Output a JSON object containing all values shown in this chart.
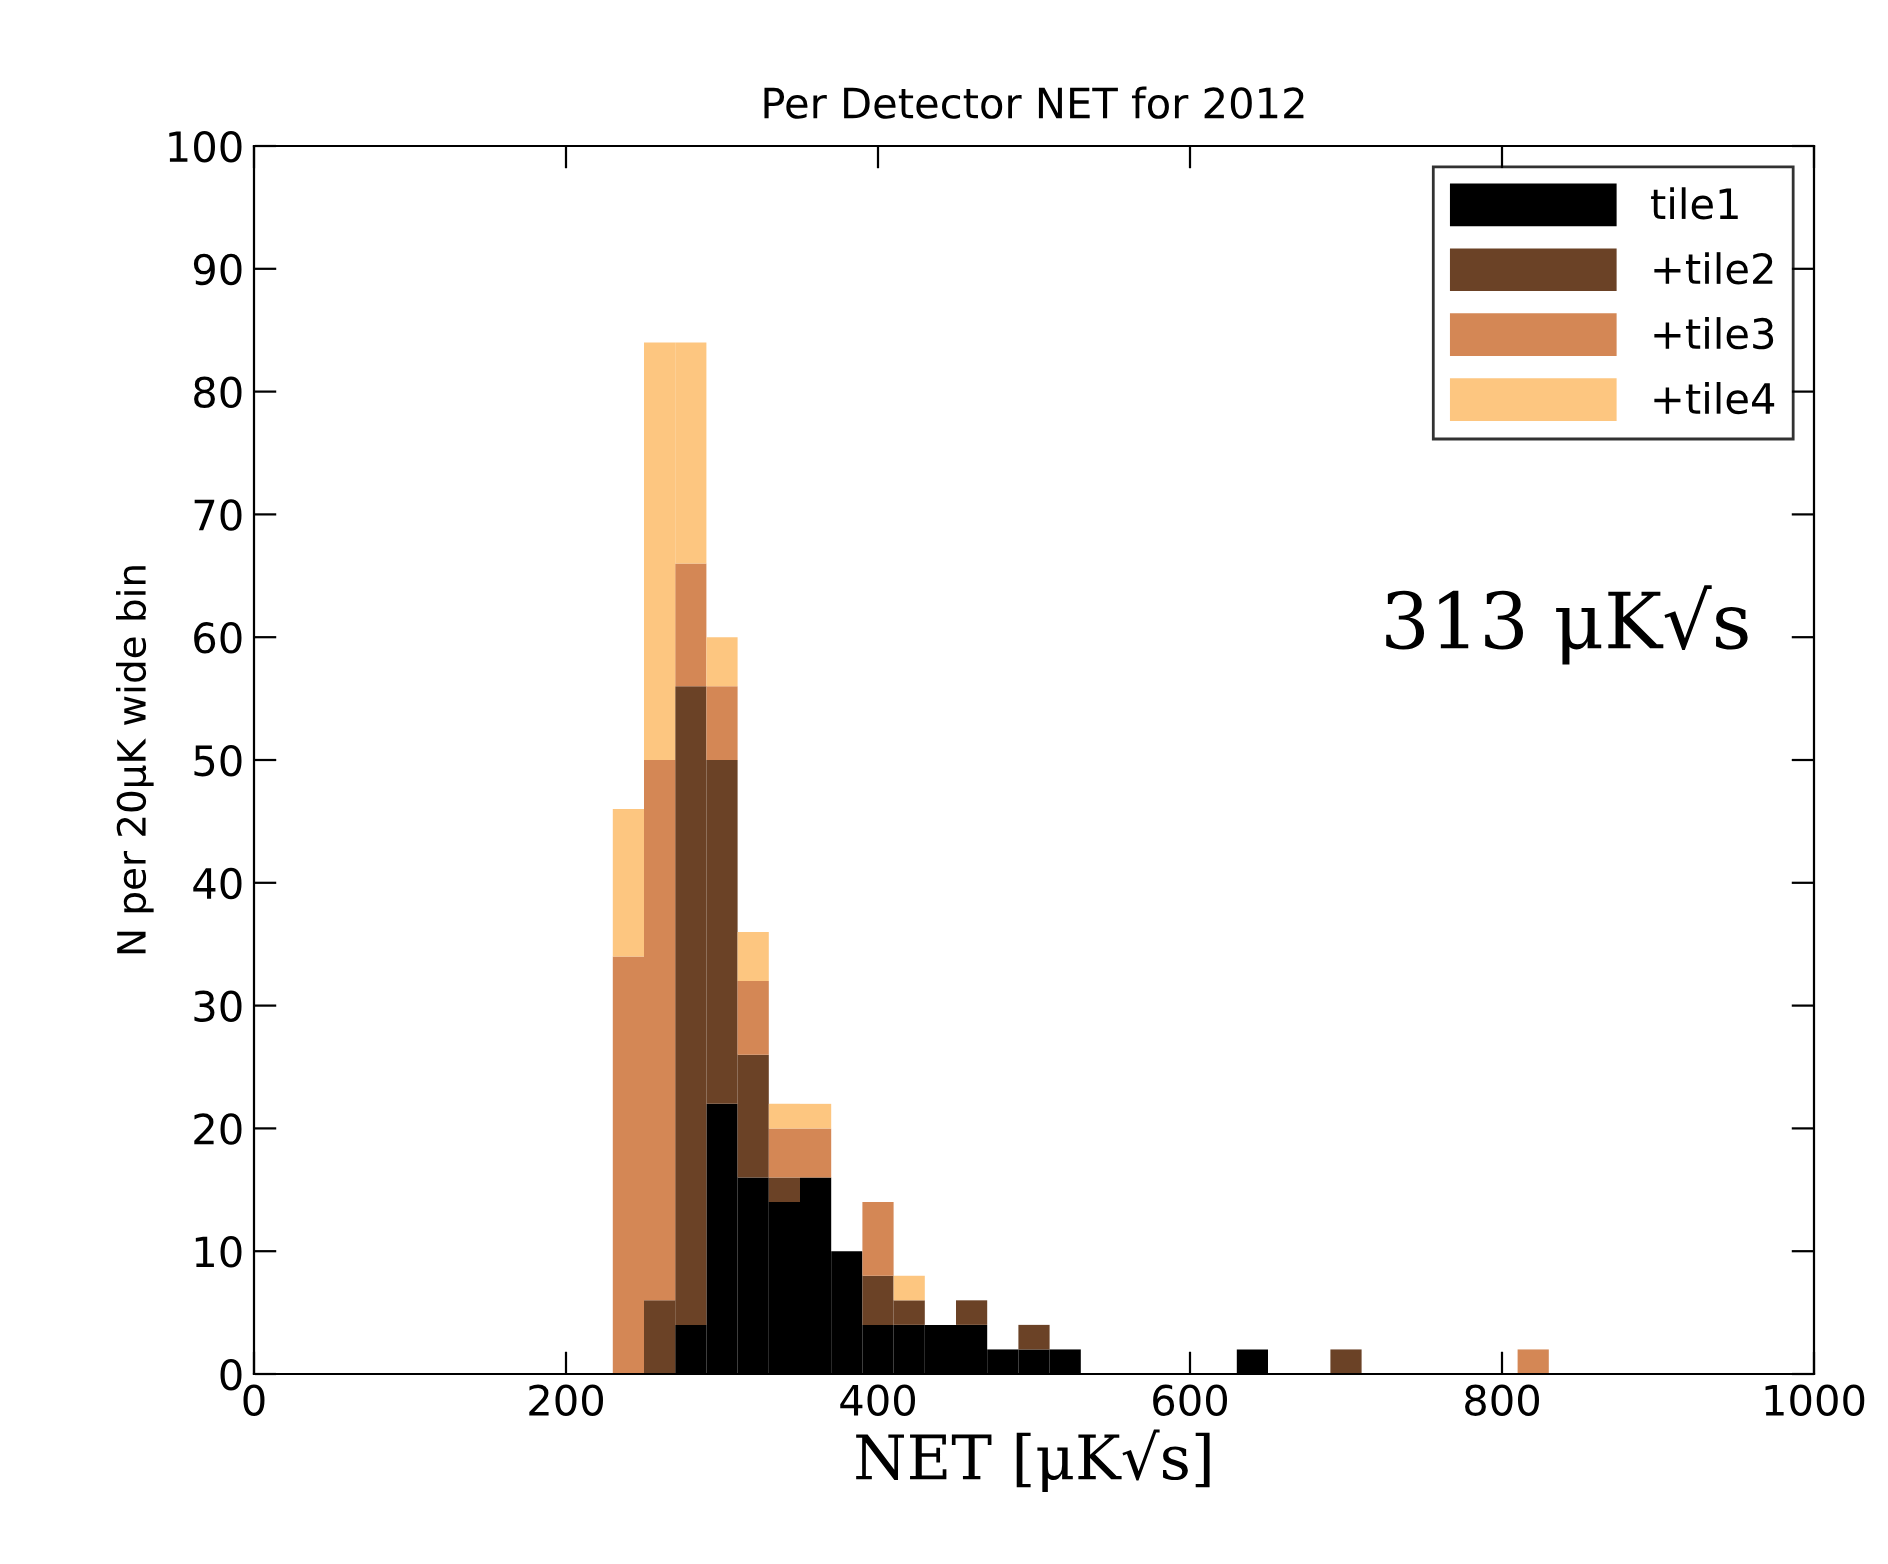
{
  "chart_data": {
    "type": "bar",
    "title": "Per Detector NET for 2012",
    "xlabel": "NET [μK√s]",
    "ylabel": "N per 20μK wide bin",
    "x": [
      240,
      260,
      280,
      300,
      320,
      340,
      360,
      380,
      400,
      420,
      440,
      460,
      480,
      500,
      520,
      540,
      560,
      580,
      600,
      620,
      640,
      660,
      680,
      700,
      720,
      740,
      760,
      780,
      800,
      820
    ],
    "stacked": true,
    "series": [
      {
        "name": "tile1",
        "color": "#000000",
        "values": [
          0,
          0,
          4,
          22,
          16,
          14,
          16,
          10,
          4,
          4,
          4,
          4,
          2,
          2,
          2,
          0,
          0,
          0,
          0,
          0,
          2,
          0,
          0,
          0,
          0,
          0,
          0,
          0,
          0,
          0
        ]
      },
      {
        "name": "+tile2",
        "color": "#6b4226",
        "values": [
          0,
          6,
          52,
          28,
          10,
          2,
          0,
          0,
          4,
          2,
          0,
          2,
          0,
          2,
          0,
          0,
          0,
          0,
          0,
          0,
          0,
          0,
          0,
          2,
          0,
          0,
          0,
          0,
          0,
          0
        ]
      },
      {
        "name": "+tile3",
        "color": "#d48755",
        "values": [
          34,
          44,
          10,
          6,
          6,
          4,
          4,
          0,
          6,
          0,
          0,
          0,
          0,
          0,
          0,
          0,
          0,
          0,
          0,
          0,
          0,
          0,
          0,
          0,
          0,
          0,
          0,
          0,
          0,
          2
        ]
      },
      {
        "name": "+tile4",
        "color": "#fdc680",
        "values": [
          12,
          34,
          18,
          4,
          4,
          2,
          2,
          0,
          0,
          2,
          0,
          0,
          0,
          0,
          0,
          0,
          0,
          0,
          0,
          0,
          0,
          0,
          0,
          0,
          0,
          0,
          0,
          0,
          0,
          0
        ]
      }
    ],
    "xlim": [
      0,
      1000
    ],
    "xticks": [
      0,
      200,
      400,
      600,
      800,
      1000
    ],
    "ylim": [
      0,
      100
    ],
    "yticks": [
      0,
      10,
      20,
      30,
      40,
      50,
      60,
      70,
      80,
      90,
      100
    ],
    "annotations": [
      "313 μK√s"
    ],
    "legend": "top right",
    "grid": false
  }
}
